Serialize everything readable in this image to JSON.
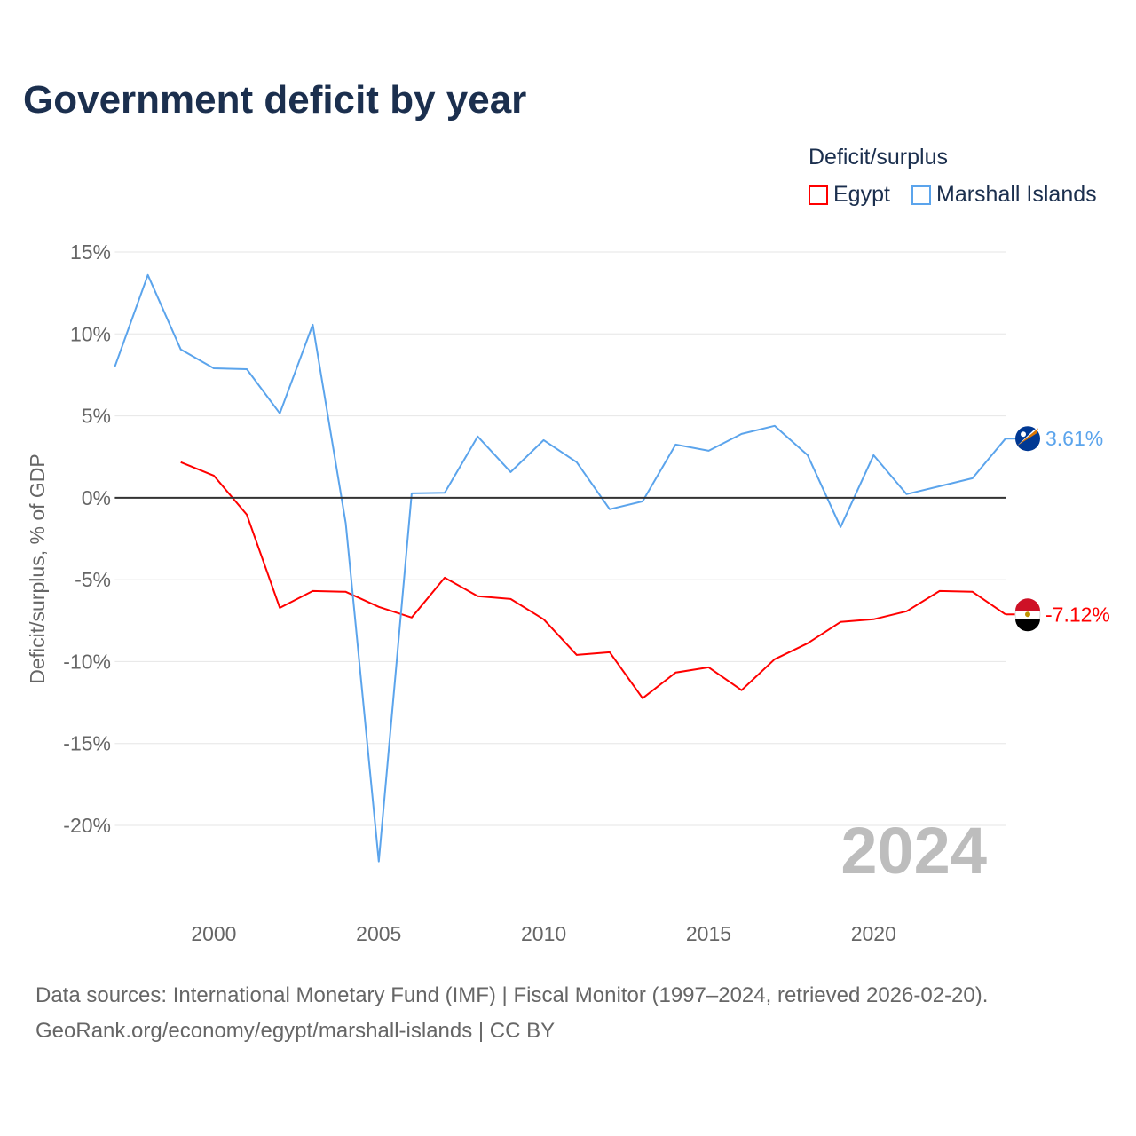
{
  "chart_data": {
    "type": "line",
    "title": "Government deficit by year",
    "ylabel": "Deficit/surplus, % of GDP",
    "xlabel": "",
    "xlim": [
      1997,
      2024
    ],
    "ylim": [
      -20,
      15
    ],
    "y_ticks": [
      15,
      10,
      5,
      0,
      -5,
      -10,
      -15,
      -20
    ],
    "y_tick_labels": [
      "15%",
      "10%",
      "5%",
      "0%",
      "-5%",
      "-10%",
      "-15%",
      "-20%"
    ],
    "x_ticks": [
      2000,
      2005,
      2010,
      2015,
      2020
    ],
    "x_tick_labels": [
      "2000",
      "2005",
      "2010",
      "2015",
      "2020"
    ],
    "legend_title": "Deficit/surplus",
    "legend_position": "top-right",
    "year_watermark": "2024",
    "series": [
      {
        "name": "Egypt",
        "color": "#ff0000",
        "end_label": "-7.12%",
        "x": [
          1999,
          2000,
          2001,
          2002,
          2003,
          2004,
          2005,
          2006,
          2007,
          2008,
          2009,
          2010,
          2011,
          2012,
          2013,
          2014,
          2015,
          2016,
          2017,
          2018,
          2019,
          2020,
          2021,
          2022,
          2023,
          2024
        ],
        "values": [
          2.17,
          1.35,
          -1.03,
          -6.72,
          -5.69,
          -5.74,
          -6.66,
          -7.31,
          -4.88,
          -6.01,
          -6.18,
          -7.42,
          -9.59,
          -9.43,
          -12.24,
          -10.67,
          -10.35,
          -11.75,
          -9.86,
          -8.88,
          -7.58,
          -7.42,
          -6.93,
          -5.69,
          -5.74,
          -7.12
        ]
      },
      {
        "name": "Marshall Islands",
        "color": "#5ba4ec",
        "end_label": "3.61%",
        "x": [
          1997,
          1998,
          1999,
          2000,
          2001,
          2002,
          2003,
          2004,
          2005,
          2006,
          2007,
          2008,
          2009,
          2010,
          2011,
          2012,
          2013,
          2014,
          2015,
          2016,
          2017,
          2018,
          2019,
          2020,
          2021,
          2022,
          2023,
          2024
        ],
        "values": [
          8.0,
          13.6,
          9.05,
          7.9,
          7.85,
          5.15,
          10.56,
          -1.57,
          -22.2,
          0.27,
          0.3,
          3.74,
          1.57,
          3.52,
          2.17,
          -0.7,
          -0.22,
          3.25,
          2.87,
          3.9,
          4.39,
          2.6,
          -1.79,
          2.6,
          0.22,
          0.7,
          1.19,
          3.61
        ]
      }
    ]
  },
  "footer": {
    "line1": "Data sources: International Monetary Fund (IMF) | Fiscal Monitor (1997–2024, retrieved 2026-02-20).",
    "line2": "GeoRank.org/economy/egypt/marshall-islands | CC BY"
  }
}
